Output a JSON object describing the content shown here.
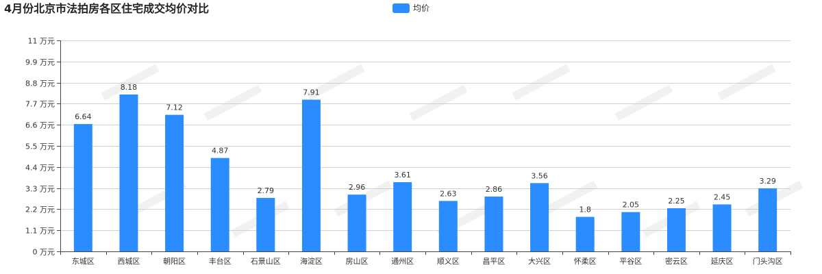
{
  "chart_data": {
    "type": "bar",
    "title": "4月份北京市法拍房各区住宅成交均价对比",
    "legend": {
      "entries": [
        "均价"
      ],
      "placement": "top-center"
    },
    "categories": [
      "东城区",
      "西城区",
      "朝阳区",
      "丰台区",
      "石景山区",
      "海淀区",
      "房山区",
      "通州区",
      "顺义区",
      "昌平区",
      "大兴区",
      "怀柔区",
      "平谷区",
      "密云区",
      "延庆区",
      "门头沟区"
    ],
    "series": [
      {
        "name": "均价",
        "values": [
          6.64,
          8.18,
          7.12,
          4.87,
          2.79,
          7.91,
          2.96,
          3.61,
          2.63,
          2.86,
          3.56,
          1.8,
          2.05,
          2.25,
          2.45,
          3.29
        ]
      }
    ],
    "data_labels": [
      "6.64",
      "8.18",
      "7.12",
      "4.87",
      "2.79",
      "7.91",
      "2.96",
      "3.61",
      "2.63",
      "2.86",
      "3.56",
      "1.8",
      "2.05",
      "2.25",
      "2.45",
      "3.29"
    ],
    "y_ticks": [
      0,
      1.1,
      2.2,
      3.3,
      4.4,
      5.5,
      6.6,
      7.7,
      8.8,
      9.9,
      11
    ],
    "y_tick_labels": [
      "0 万元",
      "1.1 万元",
      "2.2 万元",
      "3.3 万元",
      "4.4 万元",
      "5.5 万元",
      "6.6 万元",
      "7.7 万元",
      "8.8 万元",
      "9.9 万元",
      "11 万元"
    ],
    "ylim": [
      0,
      11
    ],
    "grid": true,
    "xlabel": "",
    "ylabel": ""
  },
  "colors": {
    "bar": "#2b8cff",
    "grid": "#d0d0d0",
    "axis": "#444444",
    "watermark": "#d8d8d8"
  }
}
